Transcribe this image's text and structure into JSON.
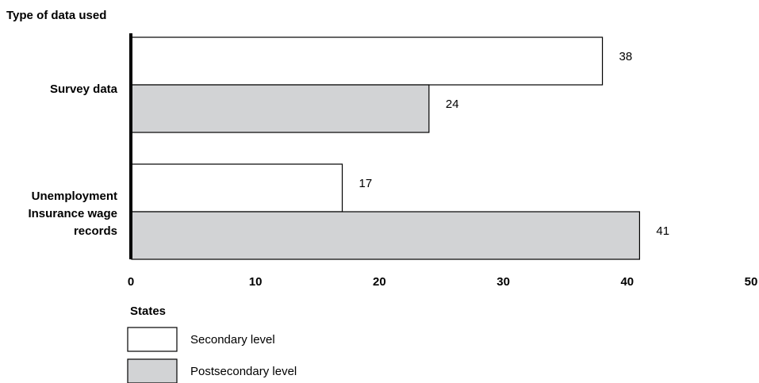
{
  "chart_data": {
    "type": "bar",
    "orientation": "horizontal",
    "ylabel": "Type of data used",
    "categories": [
      [
        "Survey data"
      ],
      [
        "Unemployment",
        "Insurance wage",
        "records"
      ]
    ],
    "series": [
      {
        "name": "Secondary level",
        "values": [
          38,
          17
        ],
        "color": "#ffffff"
      },
      {
        "name": "Postsecondary level",
        "values": [
          24,
          41
        ],
        "color": "#d2d3d5"
      }
    ],
    "xlim": [
      0,
      50
    ],
    "xticks": [
      "0",
      "10",
      "20",
      "30",
      "40",
      "50"
    ],
    "legend": {
      "title": "States",
      "placement": "bottom-left"
    },
    "grid": false,
    "bar_stroke_color": "#000000",
    "axis_color": "#000000"
  }
}
